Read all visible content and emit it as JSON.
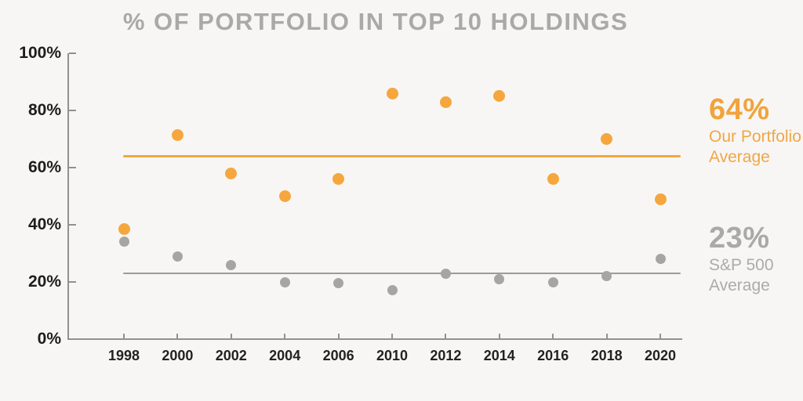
{
  "title": "% OF PORTFOLIO IN TOP 10 HOLDINGS",
  "chart_data": {
    "type": "scatter",
    "title": "% OF PORTFOLIO IN TOP 10 HOLDINGS",
    "categories": [
      "1998",
      "2000",
      "2002",
      "2004",
      "2006",
      "2010",
      "2012",
      "2014",
      "2016",
      "2018",
      "2020"
    ],
    "series": [
      {
        "name": "Our Portfolio",
        "color": "#F5A73D",
        "marker_size": 15,
        "values": [
          38.5,
          71.5,
          58,
          50,
          56,
          86,
          83,
          85,
          56,
          70,
          49
        ]
      },
      {
        "name": "S&P 500",
        "color": "#A5A5A5",
        "marker_size": 13,
        "values": [
          34,
          29,
          26,
          20,
          19.5,
          17,
          23,
          21,
          20,
          22,
          28
        ]
      }
    ],
    "reference_lines": [
      {
        "name": "our-portfolio-average",
        "label": "Our Portfolio Average",
        "value": 64,
        "color": "#F5A73D",
        "thickness": 3
      },
      {
        "name": "sp500-average",
        "label": "S&P 500 Average",
        "value": 23,
        "color": "#9B9B9B",
        "thickness": 2
      }
    ],
    "ylim": [
      0,
      100
    ],
    "ytick_values": [
      100,
      80,
      60,
      40,
      20,
      0
    ],
    "ytick_labels": [
      "100%",
      "80%",
      "60%",
      "40%",
      "20%",
      "0%"
    ],
    "grid": false,
    "legend_position": "right-annotations"
  },
  "annotations": {
    "portfolio": {
      "value": "64%",
      "line1": "Our Portfolio",
      "line2": "Average"
    },
    "sp500": {
      "value": "23%",
      "line1": "S&P 500",
      "line2": "Average"
    }
  },
  "colors": {
    "background": "#F7F6F4",
    "title_text": "#A9A9A9",
    "axis": "#919191",
    "tick_text": "#1D1D1D",
    "portfolio_orange": "#F5A73D",
    "sp500_gray": "#A5A5A5",
    "annotation_orange": "#F1A33C",
    "annotation_gray": "#ABABAB"
  }
}
